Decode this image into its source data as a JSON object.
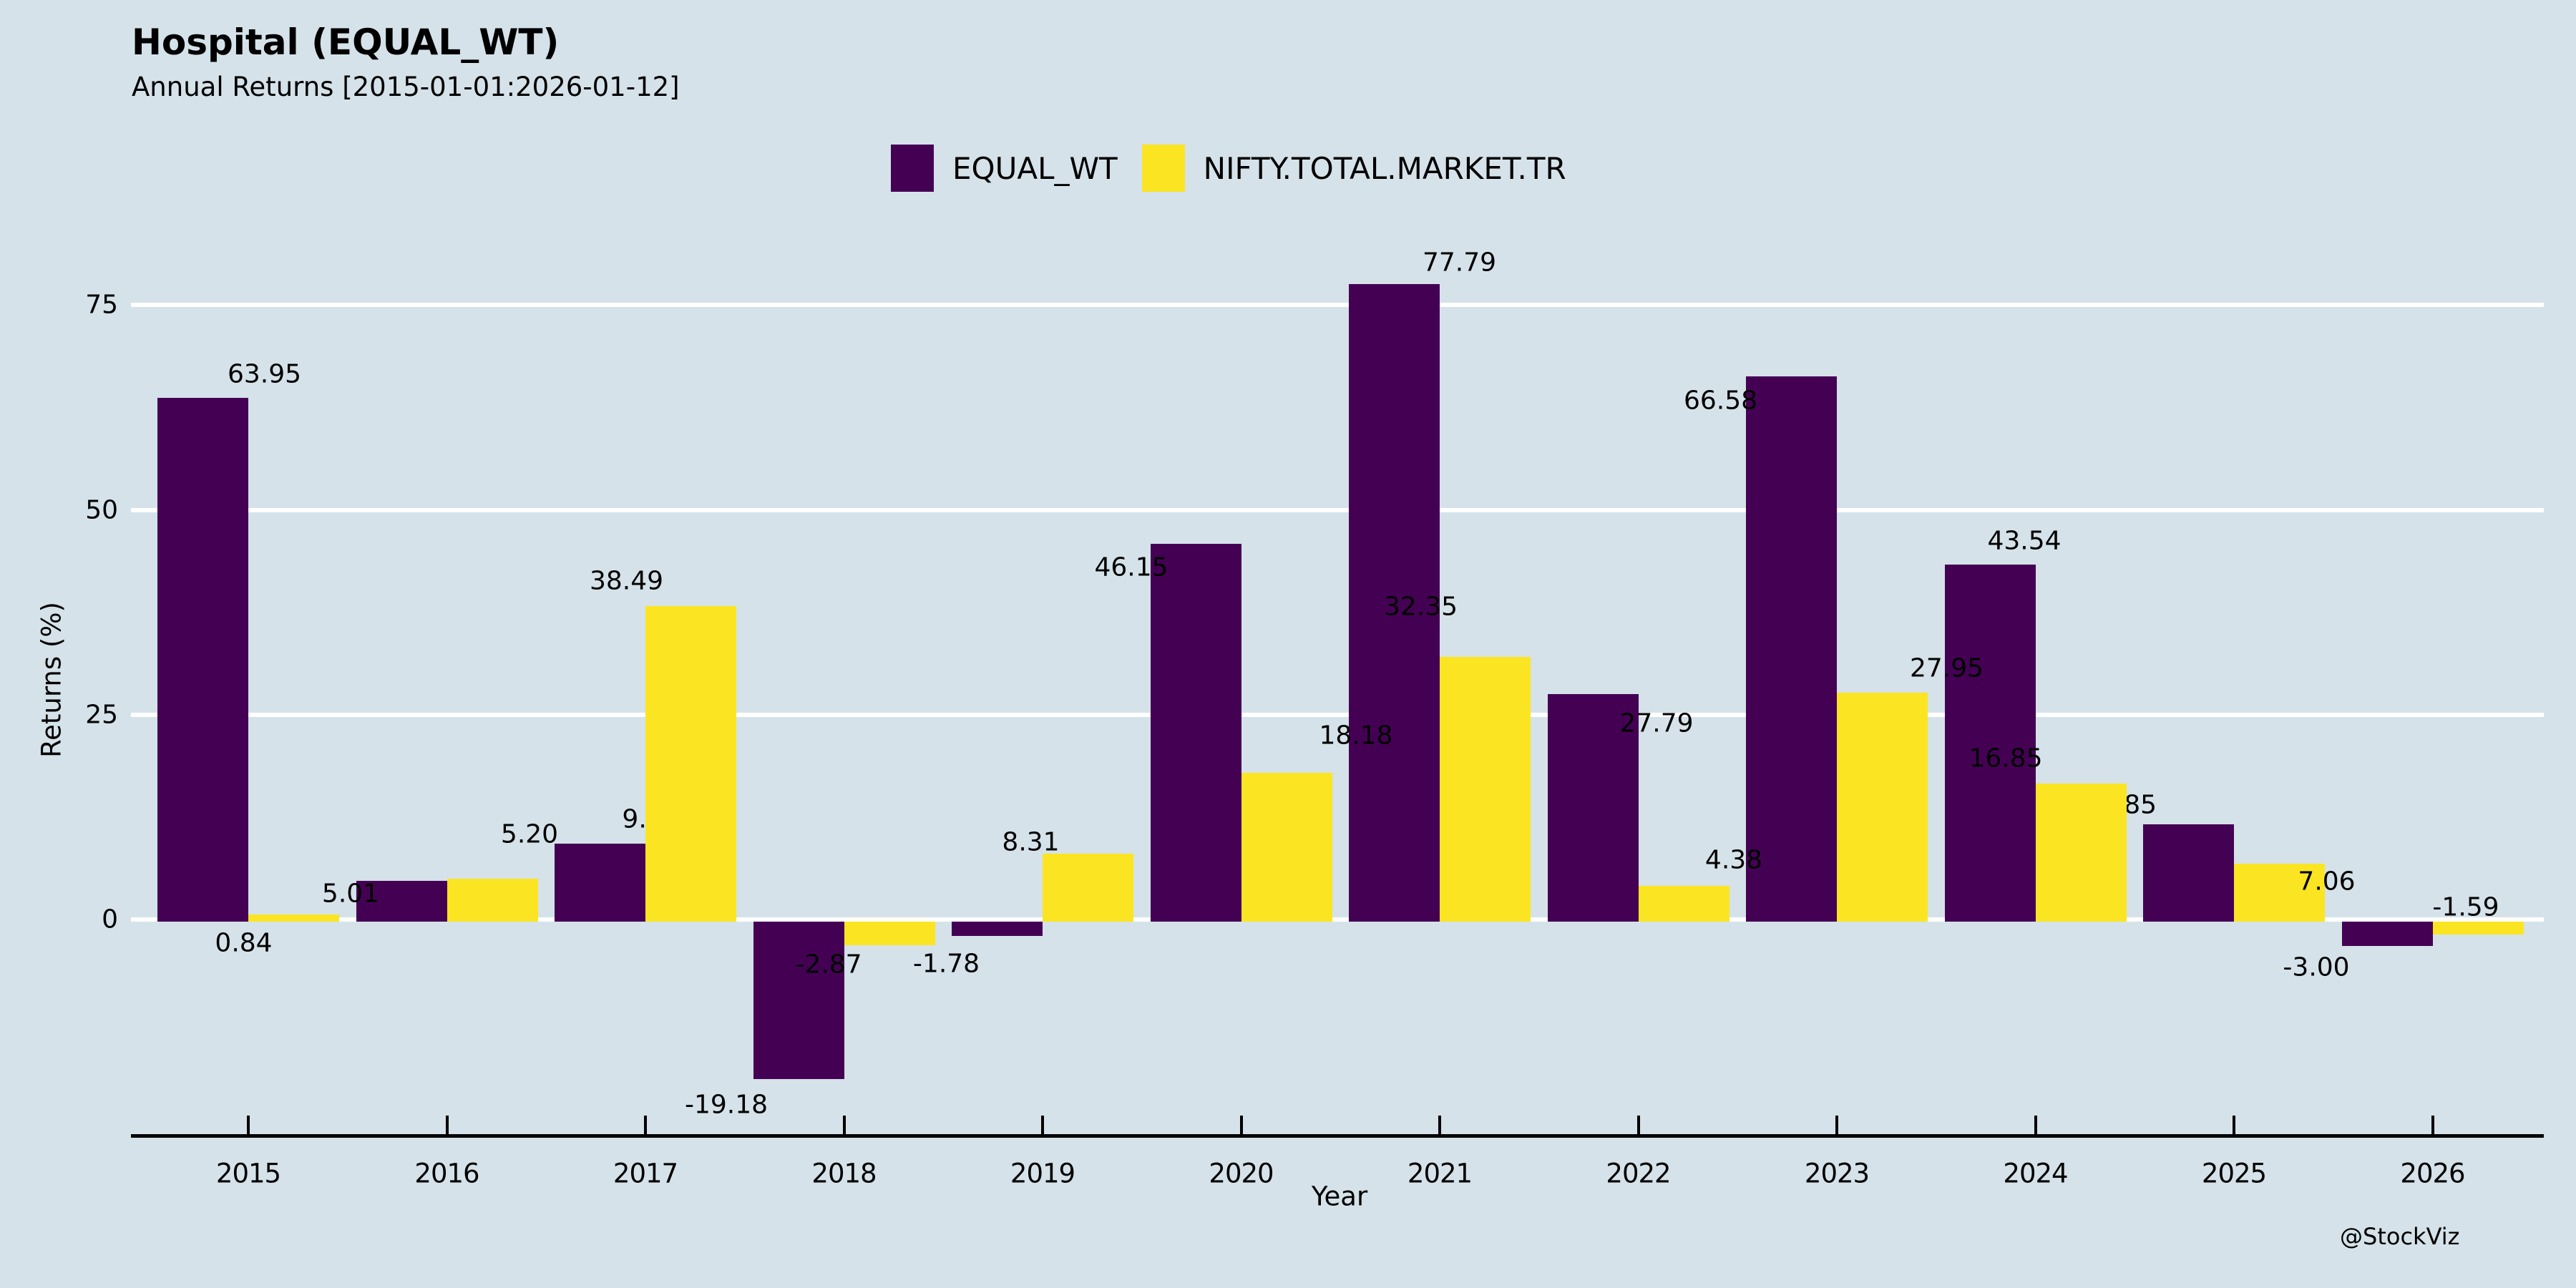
{
  "header": {
    "title": "Hospital (EQUAL_WT)",
    "subtitle": "Annual Returns [2015-01-01:2026-01-12]"
  },
  "watermark": "@StockViz",
  "colors": {
    "background": "#d5e2e9",
    "grid": "#ffffff",
    "axis": "#000000",
    "text": "#000000",
    "equal_wt": "#440154",
    "nifty": "#fbe522"
  },
  "legend": {
    "items": [
      {
        "label": "EQUAL_WT",
        "color": "#440154"
      },
      {
        "label": "NIFTY.TOTAL.MARKET.TR",
        "color": "#fbe522"
      }
    ]
  },
  "chart_data": {
    "type": "bar",
    "title": "Hospital (EQUAL_WT)",
    "subtitle": "Annual Returns [2015-01-01:2026-01-12]",
    "xlabel": "Year",
    "ylabel": "Returns (%)",
    "categories": [
      "2015",
      "2016",
      "2017",
      "2018",
      "2019",
      "2020",
      "2021",
      "2022",
      "2023",
      "2024",
      "2025",
      "2026"
    ],
    "series": [
      {
        "name": "EQUAL_WT",
        "color": "#440154",
        "values": [
          63.95,
          5.01,
          9.55,
          -19.18,
          -1.78,
          46.15,
          77.79,
          27.79,
          66.58,
          43.54,
          11.85,
          -3.0
        ]
      },
      {
        "name": "NIFTY.TOTAL.MARKET.TR",
        "color": "#fbe522",
        "values": [
          0.84,
          5.2,
          38.49,
          -2.87,
          8.31,
          18.18,
          32.35,
          4.38,
          27.95,
          16.85,
          7.06,
          -1.59
        ]
      }
    ],
    "bar_labels_decimals": 2,
    "yticks": [
      0,
      25,
      50,
      75
    ],
    "ylim": [
      -26,
      85
    ],
    "grid": "horizontal white gridlines on light blue background",
    "legend_position": "top-center",
    "label_offsets": {
      "EQUAL_WT": [
        [
          86,
          5
        ],
        [
          -71,
          56
        ],
        [
          71,
          4
        ],
        [
          -101,
          -6
        ],
        [
          -71,
          -3
        ],
        [
          -90,
          71
        ],
        [
          91,
          8
        ],
        [
          89,
          79
        ],
        [
          -99,
          72
        ],
        [
          48,
          5
        ],
        [
          -96,
          11
        ],
        [
          -99,
          -12
        ]
      ],
      "NIFTY.TOTAL.MARKET.TR": [
        [
          -70,
          78
        ],
        [
          52,
          -24
        ],
        [
          -90,
          3
        ],
        [
          -85,
          -15
        ],
        [
          -80,
          22
        ],
        [
          97,
          -14
        ],
        [
          -90,
          -32
        ],
        [
          70,
          2
        ],
        [
          90,
          4
        ],
        [
          -105,
          3
        ],
        [
          66,
          63
        ],
        [
          -17,
          -80
        ]
      ]
    }
  }
}
